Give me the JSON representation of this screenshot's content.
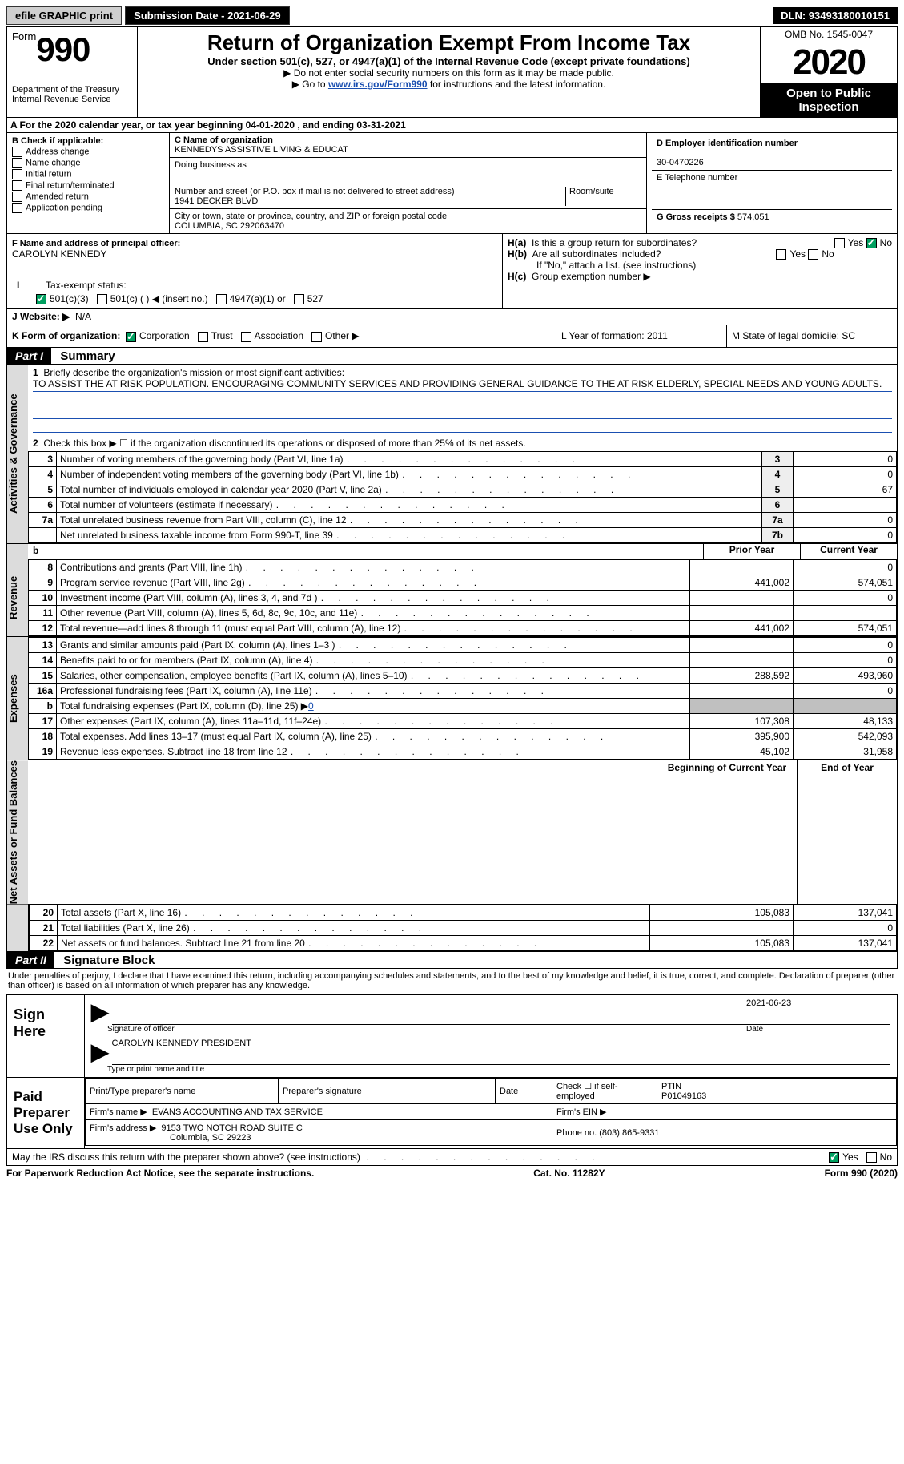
{
  "topbar": {
    "efile": "efile GRAPHIC print",
    "submission": "Submission Date - 2021-06-29",
    "dln": "DLN: 93493180010151"
  },
  "header": {
    "form_word": "Form",
    "form_num": "990",
    "dept1": "Department of the Treasury",
    "dept2": "Internal Revenue Service",
    "title": "Return of Organization Exempt From Income Tax",
    "subtitle": "Under section 501(c), 527, or 4947(a)(1) of the Internal Revenue Code (except private foundations)",
    "instr1": "▶ Do not enter social security numbers on this form as it may be made public.",
    "instr2_pre": "▶ Go to ",
    "instr2_link": "www.irs.gov/Form990",
    "instr2_post": " for instructions and the latest information.",
    "omb": "OMB No. 1545-0047",
    "year": "2020",
    "open": "Open to Public Inspection"
  },
  "row_a": "A For the 2020 calendar year, or tax year beginning 04-01-2020    , and ending 03-31-2021",
  "section_b": {
    "label": "B Check if applicable:",
    "opts": [
      "Address change",
      "Name change",
      "Initial return",
      "Final return/terminated",
      "Amended return",
      "Application pending"
    ]
  },
  "section_c": {
    "name_lbl": "C Name of organization",
    "name": "KENNEDYS ASSISTIVE LIVING & EDUCAT",
    "dba_lbl": "Doing business as",
    "addr_lbl": "Number and street (or P.O. box if mail is not delivered to street address)",
    "room_lbl": "Room/suite",
    "addr": "1941 DECKER BLVD",
    "city_lbl": "City or town, state or province, country, and ZIP or foreign postal code",
    "city": "COLUMBIA, SC  292063470"
  },
  "section_d": {
    "ein_lbl": "D Employer identification number",
    "ein": "30-0470226",
    "phone_lbl": "E Telephone number",
    "gross_lbl": "G Gross receipts $ ",
    "gross": "574,051"
  },
  "section_f": {
    "lbl": "F  Name and address of principal officer:",
    "name": "CAROLYN KENNEDY"
  },
  "section_h": {
    "ha": "Is this a group return for subordinates?",
    "hb": "Are all subordinates included?",
    "hb_note": "If \"No,\" attach a list. (see instructions)",
    "hc": "Group exemption number ▶"
  },
  "row_i": {
    "lbl": "Tax-exempt status:",
    "opts": [
      "501(c)(3)",
      "501(c) (  ) ◀ (insert no.)",
      "4947(a)(1) or",
      "527"
    ]
  },
  "row_j": {
    "lbl": "J   Website: ▶",
    "val": "N/A"
  },
  "row_k": {
    "lbl": "K Form of organization:",
    "opts": [
      "Corporation",
      "Trust",
      "Association",
      "Other ▶"
    ]
  },
  "row_lm": {
    "l": "L Year of formation: 2011",
    "m": "M State of legal domicile: SC"
  },
  "part1": {
    "hdr": "Part I",
    "title": "Summary",
    "line1_lbl": "Briefly describe the organization's mission or most significant activities:",
    "mission": "TO ASSIST THE AT RISK POPULATION. ENCOURAGING COMMUNITY SERVICES AND PROVIDING GENERAL GUIDANCE TO THE AT RISK ELDERLY, SPECIAL NEEDS AND YOUNG ADULTS.",
    "line2": "Check this box ▶ ☐  if the organization discontinued its operations or disposed of more than 25% of its net assets.",
    "governance_rows": [
      {
        "n": "3",
        "t": "Number of voting members of the governing body (Part VI, line 1a)",
        "box": "3",
        "v": "0"
      },
      {
        "n": "4",
        "t": "Number of independent voting members of the governing body (Part VI, line 1b)",
        "box": "4",
        "v": "0"
      },
      {
        "n": "5",
        "t": "Total number of individuals employed in calendar year 2020 (Part V, line 2a)",
        "box": "5",
        "v": "67"
      },
      {
        "n": "6",
        "t": "Total number of volunteers (estimate if necessary)",
        "box": "6",
        "v": ""
      },
      {
        "n": "7a",
        "t": "Total unrelated business revenue from Part VIII, column (C), line 12",
        "box": "7a",
        "v": "0"
      },
      {
        "n": "",
        "t": "Net unrelated business taxable income from Form 990-T, line 39",
        "box": "7b",
        "v": "0"
      }
    ],
    "col_prior": "Prior Year",
    "col_current": "Current Year",
    "revenue_rows": [
      {
        "n": "8",
        "t": "Contributions and grants (Part VIII, line 1h)",
        "p": "",
        "c": "0"
      },
      {
        "n": "9",
        "t": "Program service revenue (Part VIII, line 2g)",
        "p": "441,002",
        "c": "574,051"
      },
      {
        "n": "10",
        "t": "Investment income (Part VIII, column (A), lines 3, 4, and 7d )",
        "p": "",
        "c": "0"
      },
      {
        "n": "11",
        "t": "Other revenue (Part VIII, column (A), lines 5, 6d, 8c, 9c, 10c, and 11e)",
        "p": "",
        "c": ""
      },
      {
        "n": "12",
        "t": "Total revenue—add lines 8 through 11 (must equal Part VIII, column (A), line 12)",
        "p": "441,002",
        "c": "574,051"
      }
    ],
    "expense_rows": [
      {
        "n": "13",
        "t": "Grants and similar amounts paid (Part IX, column (A), lines 1–3 )",
        "p": "",
        "c": "0"
      },
      {
        "n": "14",
        "t": "Benefits paid to or for members (Part IX, column (A), line 4)",
        "p": "",
        "c": "0"
      },
      {
        "n": "15",
        "t": "Salaries, other compensation, employee benefits (Part IX, column (A), lines 5–10)",
        "p": "288,592",
        "c": "493,960"
      },
      {
        "n": "16a",
        "t": "Professional fundraising fees (Part IX, column (A), line 11e)",
        "p": "",
        "c": "0"
      },
      {
        "n": "b",
        "t": "Total fundraising expenses (Part IX, column (D), line 25) ▶",
        "p": "shaded",
        "c": "shaded",
        "inline": "0"
      },
      {
        "n": "17",
        "t": "Other expenses (Part IX, column (A), lines 11a–11d, 11f–24e)",
        "p": "107,308",
        "c": "48,133"
      },
      {
        "n": "18",
        "t": "Total expenses. Add lines 13–17 (must equal Part IX, column (A), line 25)",
        "p": "395,900",
        "c": "542,093"
      },
      {
        "n": "19",
        "t": "Revenue less expenses. Subtract line 18 from line 12",
        "p": "45,102",
        "c": "31,958"
      }
    ],
    "col_begin": "Beginning of Current Year",
    "col_end": "End of Year",
    "net_rows": [
      {
        "n": "20",
        "t": "Total assets (Part X, line 16)",
        "p": "105,083",
        "c": "137,041"
      },
      {
        "n": "21",
        "t": "Total liabilities (Part X, line 26)",
        "p": "",
        "c": "0"
      },
      {
        "n": "22",
        "t": "Net assets or fund balances. Subtract line 21 from line 20",
        "p": "105,083",
        "c": "137,041"
      }
    ],
    "vlabels": {
      "gov": "Activities & Governance",
      "rev": "Revenue",
      "exp": "Expenses",
      "net": "Net Assets or Fund Balances"
    }
  },
  "part2": {
    "hdr": "Part II",
    "title": "Signature Block",
    "penalty": "Under penalties of perjury, I declare that I have examined this return, including accompanying schedules and statements, and to the best of my knowledge and belief, it is true, correct, and complete. Declaration of preparer (other than officer) is based on all information of which preparer has any knowledge.",
    "sign_here": "Sign Here",
    "sig_officer": "Signature of officer",
    "date": "Date",
    "sig_date": "2021-06-23",
    "name_title": "CAROLYN KENNEDY PRESIDENT",
    "type_name": "Type or print name and title",
    "paid": "Paid Preparer Use Only",
    "prep_name_lbl": "Print/Type preparer's name",
    "prep_sig_lbl": "Preparer's signature",
    "prep_date_lbl": "Date",
    "check_self": "Check ☐ if self-employed",
    "ptin_lbl": "PTIN",
    "ptin": "P01049163",
    "firm_name_lbl": "Firm's name    ▶",
    "firm_name": "EVANS ACCOUNTING AND TAX SERVICE",
    "firm_ein_lbl": "Firm's EIN ▶",
    "firm_addr_lbl": "Firm's address ▶",
    "firm_addr1": "9153 TWO NOTCH ROAD SUITE C",
    "firm_addr2": "Columbia, SC  29223",
    "phone_lbl": "Phone no.",
    "phone": "(803) 865-9331",
    "discuss": "May the IRS discuss this return with the preparer shown above? (see instructions)"
  },
  "footer": {
    "left": "For Paperwork Reduction Act Notice, see the separate instructions.",
    "mid": "Cat. No. 11282Y",
    "right": "Form 990 (2020)"
  },
  "yesno": {
    "yes": "Yes",
    "no": "No"
  }
}
